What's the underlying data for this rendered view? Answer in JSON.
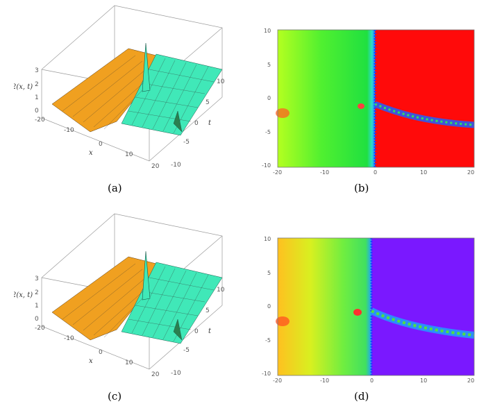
{
  "figure": {
    "panels": [
      {
        "id": "a",
        "kind": "surface-3d",
        "caption": "(a)",
        "zlabel": "φ2(x, t)",
        "xlabel": "x",
        "tlabel": "t",
        "z_ticks": [
          "0",
          "1",
          "2",
          "3"
        ],
        "x_ticks": [
          "-20",
          "-10",
          "0",
          "10",
          "20"
        ],
        "t_ticks": [
          "-10",
          "-5",
          "0",
          "5",
          "10"
        ],
        "colors": {
          "left_surface": "#f0a020",
          "right_surface": "#40e8b8",
          "mesh": "#333333"
        }
      },
      {
        "id": "b",
        "kind": "density",
        "caption": "(b)",
        "x_ticks": [
          "-20",
          "-10",
          "0",
          "10",
          "20"
        ],
        "y_ticks": [
          "10",
          "5",
          "0",
          "-5",
          "-10"
        ],
        "colors": {
          "left": "#b4ff20",
          "mid": "#20e040",
          "right": "#ff0a0a",
          "track": "#2060ff"
        }
      },
      {
        "id": "c",
        "kind": "surface-3d",
        "caption": "(c)",
        "zlabel": "φ2(x, t)",
        "xlabel": "x",
        "tlabel": "t",
        "z_ticks": [
          "0",
          "1",
          "2",
          "3"
        ],
        "x_ticks": [
          "-20",
          "-10",
          "0",
          "10",
          "20"
        ],
        "t_ticks": [
          "-10",
          "-5",
          "0",
          "5",
          "10"
        ],
        "colors": {
          "left_surface": "#f0a020",
          "right_surface": "#40e8b8",
          "mesh": "#333333"
        }
      },
      {
        "id": "d",
        "kind": "density",
        "caption": "(d)",
        "x_ticks": [
          "-20",
          "-10",
          "0",
          "10",
          "20"
        ],
        "y_ticks": [
          "10",
          "5",
          "0",
          "-5",
          "-10"
        ],
        "colors": {
          "left": "#ffc020",
          "mid": "#40e060",
          "right": "#7a18ff",
          "track": "#2090ff"
        }
      }
    ]
  }
}
